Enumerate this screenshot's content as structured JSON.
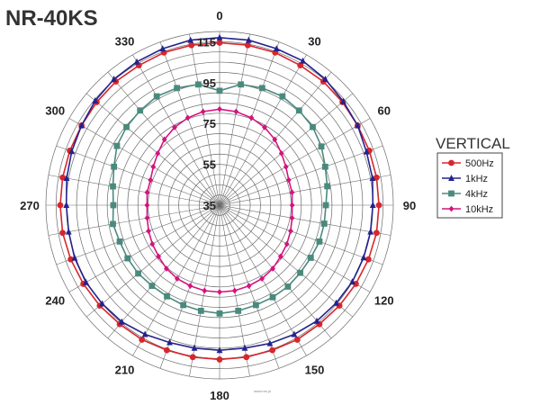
{
  "chart_data": {
    "type": "polar-line",
    "title": "NR-40KS",
    "legend_title": "VERTICAL",
    "legend_position": "right",
    "radial_range": [
      35,
      120
    ],
    "radial_ticks": [
      35,
      55,
      75,
      95,
      115
    ],
    "angle_labels": [
      "0",
      "30",
      "60",
      "90",
      "120",
      "150",
      "180",
      "210",
      "240",
      "270",
      "300",
      "330"
    ],
    "angles_deg": [
      0,
      10,
      20,
      30,
      40,
      50,
      60,
      70,
      80,
      90,
      100,
      110,
      120,
      130,
      140,
      150,
      160,
      170,
      180,
      190,
      200,
      210,
      220,
      230,
      240,
      250,
      260,
      270,
      280,
      290,
      300,
      310,
      320,
      330,
      340,
      350
    ],
    "grid": true,
    "series": [
      {
        "name": "500Hz",
        "color": "#d7262d",
        "marker": "circle",
        "values": [
          114.5,
          114.5,
          114.5,
          114,
          114,
          113.5,
          113,
          113,
          113,
          113,
          113,
          112.5,
          112,
          111.5,
          111,
          111,
          110.5,
          110.5,
          110.5,
          110.5,
          110.5,
          111,
          111,
          111.5,
          112,
          112.5,
          113,
          113,
          113,
          113,
          113,
          113.5,
          114,
          114,
          114.5,
          114.5
        ]
      },
      {
        "name": "1kHz",
        "color": "#23238e",
        "marker": "triangle",
        "values": [
          117,
          117,
          116.5,
          116.5,
          115.5,
          114,
          113,
          111.5,
          111,
          110,
          110,
          110,
          110,
          109.5,
          109,
          108,
          107,
          106,
          106,
          106,
          106.5,
          108,
          109.5,
          110,
          110.5,
          110.5,
          110,
          110,
          111,
          112,
          113,
          114.5,
          115.5,
          116,
          116.5,
          117
        ]
      },
      {
        "name": "4kHz",
        "color": "#4a8a7e",
        "marker": "square",
        "values": [
          91,
          95,
          96,
          96.5,
          95.5,
          94.5,
          92.5,
          90,
          88.5,
          87,
          87,
          87,
          86.5,
          86.5,
          87,
          87,
          87,
          87.5,
          88,
          87.5,
          87,
          86.5,
          86.5,
          87,
          87,
          87,
          88,
          87,
          88,
          90,
          93,
          94.5,
          95.5,
          96.5,
          96,
          95
        ]
      },
      {
        "name": "10kHz",
        "color": "#d4147f",
        "marker": "diamond",
        "values": [
          82,
          81.5,
          80.5,
          79,
          77,
          74.5,
          72.5,
          71,
          71,
          70.5,
          71,
          72,
          73,
          74,
          75.5,
          76.5,
          77,
          77.5,
          77.5,
          77.5,
          77,
          76.5,
          75.5,
          74,
          73,
          72,
          71,
          70.5,
          71,
          71,
          72.5,
          74.5,
          77,
          79,
          80.5,
          81.5
        ]
      }
    ],
    "watermark": "www.ms.pl"
  }
}
